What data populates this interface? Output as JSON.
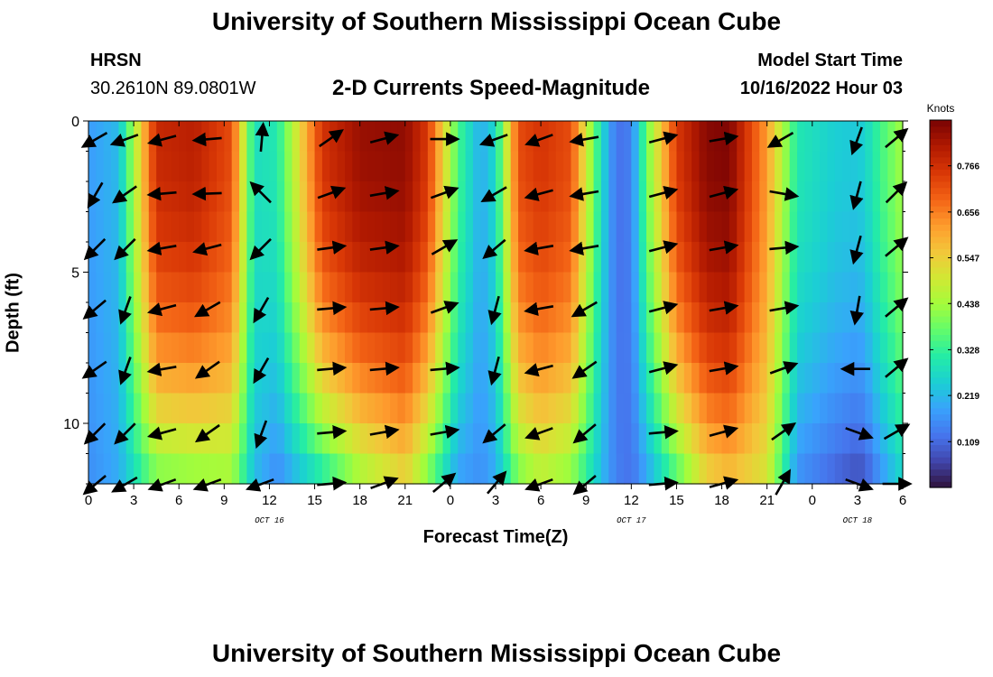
{
  "page": {
    "title": "University of Southern Mississippi Ocean Cube",
    "station_name": "HRSN",
    "station_coords": "30.2610N  89.0801W",
    "subtitle": "2-D Currents Speed-Magnitude",
    "model_start_label": "Model Start Time",
    "model_start_value": "10/16/2022 Hour 03",
    "footer_title": "University of Southern Mississippi Ocean Cube"
  },
  "chart_data": {
    "type": "heatmap",
    "title": "2-D Currents Speed-Magnitude",
    "xlabel": "Forecast Time(Z)",
    "ylabel": "Depth (ft)",
    "xlim": [
      0,
      54
    ],
    "ylim": [
      12,
      0
    ],
    "x_ticks": [
      0,
      3,
      6,
      9,
      12,
      15,
      18,
      21,
      24,
      27,
      30,
      33,
      36,
      39,
      42,
      45,
      48,
      51,
      54
    ],
    "x_tick_labels": [
      "0",
      "3",
      "6",
      "9",
      "12",
      "15",
      "18",
      "21",
      "0",
      "3",
      "6",
      "9",
      "12",
      "15",
      "18",
      "21",
      "0",
      "3",
      "6"
    ],
    "y_ticks": [
      0,
      5,
      10
    ],
    "y_tick_labels": [
      "0",
      "5",
      "10"
    ],
    "date_labels": [
      {
        "x": 12,
        "text": "OCT 16"
      },
      {
        "x": 36,
        "text": "OCT 17"
      },
      {
        "x": 51,
        "text": "OCT 18"
      }
    ],
    "colorbar": {
      "label": "Knots",
      "min": 0.0,
      "max": 0.875,
      "ticks": [
        0.109,
        0.219,
        0.328,
        0.438,
        0.547,
        0.656,
        0.766
      ],
      "tick_labels": [
        "0.109",
        "0.219",
        "0.328",
        "0.438",
        "0.547",
        "0.656",
        "0.766"
      ],
      "colormap": [
        "#30123b",
        "#4145ab",
        "#4675ed",
        "#39a2fc",
        "#1bcfd4",
        "#24eca6",
        "#61fc6c",
        "#a4fc3b",
        "#d1e834",
        "#f3c63a",
        "#fe9b2d",
        "#f36315",
        "#d93806",
        "#b11901",
        "#7a0403"
      ]
    },
    "speed_profile": {
      "hours": [
        0,
        2,
        4.5,
        7,
        9.5,
        11,
        12.5,
        15.5,
        18,
        21,
        22.5,
        24.5,
        26,
        27,
        28.5,
        30,
        32,
        34,
        35,
        36,
        37,
        39,
        41,
        42.5,
        45,
        47,
        49.5,
        51,
        51.5,
        52.5,
        54
      ],
      "surface_knots": [
        0.18,
        0.22,
        0.78,
        0.8,
        0.72,
        0.28,
        0.3,
        0.76,
        0.84,
        0.85,
        0.75,
        0.35,
        0.2,
        0.27,
        0.72,
        0.76,
        0.72,
        0.28,
        0.12,
        0.14,
        0.38,
        0.75,
        0.86,
        0.87,
        0.62,
        0.3,
        0.25,
        0.24,
        0.26,
        0.34,
        0.44
      ],
      "bottom_knots": [
        0.16,
        0.2,
        0.38,
        0.4,
        0.42,
        0.22,
        0.15,
        0.28,
        0.42,
        0.52,
        0.38,
        0.18,
        0.16,
        0.2,
        0.38,
        0.45,
        0.4,
        0.22,
        0.14,
        0.12,
        0.18,
        0.34,
        0.52,
        0.56,
        0.5,
        0.16,
        0.1,
        0.07,
        0.08,
        0.16,
        0.26
      ]
    },
    "vectors": {
      "columns": [
        {
          "hour": 0.5,
          "angles_deg": [
            210,
            240,
            225,
            220,
            215,
            225,
            220
          ]
        },
        {
          "hour": 2.5,
          "angles_deg": [
            200,
            215,
            225,
            250,
            250,
            225,
            210
          ]
        },
        {
          "hour": 5,
          "angles_deg": [
            195,
            185,
            190,
            195,
            190,
            195,
            200
          ]
        },
        {
          "hour": 8,
          "angles_deg": [
            185,
            182,
            195,
            210,
            215,
            215,
            200
          ]
        },
        {
          "hour": 11.5,
          "angles_deg": [
            85,
            135,
            225,
            240,
            240,
            250,
            200
          ]
        },
        {
          "hour": 16,
          "angles_deg": [
            35,
            20,
            8,
            5,
            5,
            5,
            5
          ]
        },
        {
          "hour": 19.5,
          "angles_deg": [
            15,
            10,
            8,
            5,
            5,
            10,
            20
          ]
        },
        {
          "hour": 23.5,
          "angles_deg": [
            0,
            20,
            30,
            20,
            5,
            10,
            40
          ]
        },
        {
          "hour": 27,
          "angles_deg": [
            200,
            210,
            220,
            255,
            255,
            220,
            50
          ]
        },
        {
          "hour": 30,
          "angles_deg": [
            200,
            195,
            190,
            190,
            195,
            200,
            200
          ]
        },
        {
          "hour": 33,
          "angles_deg": [
            190,
            190,
            190,
            210,
            215,
            220,
            220
          ]
        },
        {
          "hour": 38,
          "angles_deg": [
            15,
            15,
            15,
            15,
            15,
            5,
            5
          ]
        },
        {
          "hour": 42,
          "angles_deg": [
            10,
            15,
            10,
            10,
            10,
            15,
            15
          ]
        },
        {
          "hour": 46,
          "angles_deg": [
            210,
            350,
            5,
            10,
            20,
            35,
            60
          ]
        },
        {
          "hour": 51,
          "angles_deg": [
            250,
            255,
            255,
            260,
            180,
            340,
            340
          ]
        },
        {
          "hour": 53.5,
          "angles_deg": [
            40,
            45,
            40,
            40,
            40,
            30,
            0
          ]
        }
      ],
      "depths_ft": [
        0.6,
        2.4,
        4.2,
        6.2,
        8.2,
        10.3,
        12
      ]
    }
  }
}
